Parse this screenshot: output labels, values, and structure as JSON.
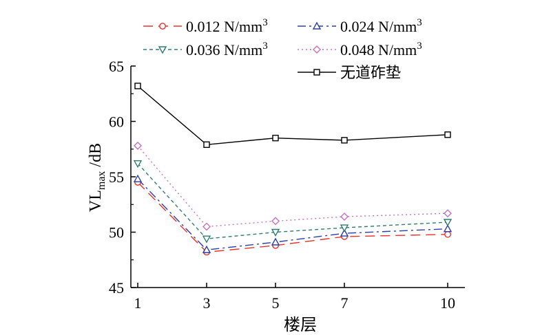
{
  "chart_data": {
    "type": "line",
    "title": "",
    "xlabel": "楼层",
    "ylabel": {
      "main": "VL",
      "sub": "max",
      "unit": " /dB"
    },
    "x": [
      1,
      3,
      5,
      7,
      10
    ],
    "x_tick_labels": [
      "1",
      "3",
      "5",
      "7",
      "10"
    ],
    "ylim": [
      45,
      65
    ],
    "y_ticks": [
      45,
      50,
      55,
      60,
      65
    ],
    "y_tick_labels": [
      "45",
      "50",
      "55",
      "60",
      "65"
    ],
    "grid": false,
    "legend_position": "top",
    "series": [
      {
        "name": "0.012 N/mm",
        "sup": "3",
        "values": [
          54.5,
          48.2,
          48.8,
          49.6,
          49.8
        ],
        "color": "#e8302a",
        "dash": "14,8",
        "marker": "circle"
      },
      {
        "name": "0.024 N/mm",
        "sup": "3",
        "values": [
          54.8,
          48.4,
          49.1,
          49.9,
          50.3
        ],
        "color": "#2a3ea8",
        "dash": "12,5,3,5",
        "marker": "triangle-up"
      },
      {
        "name": "0.036 N/mm",
        "sup": "3",
        "values": [
          56.2,
          49.4,
          50.0,
          50.4,
          50.9
        ],
        "color": "#2e7c6e",
        "dash": "5,4",
        "marker": "triangle-down"
      },
      {
        "name": "0.048 N/mm",
        "sup": "3",
        "values": [
          57.8,
          50.5,
          51.0,
          51.4,
          51.7
        ],
        "color": "#c470c0",
        "dash": "2,4",
        "marker": "diamond"
      },
      {
        "name": "无道砟垫",
        "sup": "",
        "values": [
          63.2,
          57.9,
          58.5,
          58.3,
          58.8
        ],
        "color": "#000000",
        "dash": "",
        "marker": "square"
      }
    ]
  }
}
